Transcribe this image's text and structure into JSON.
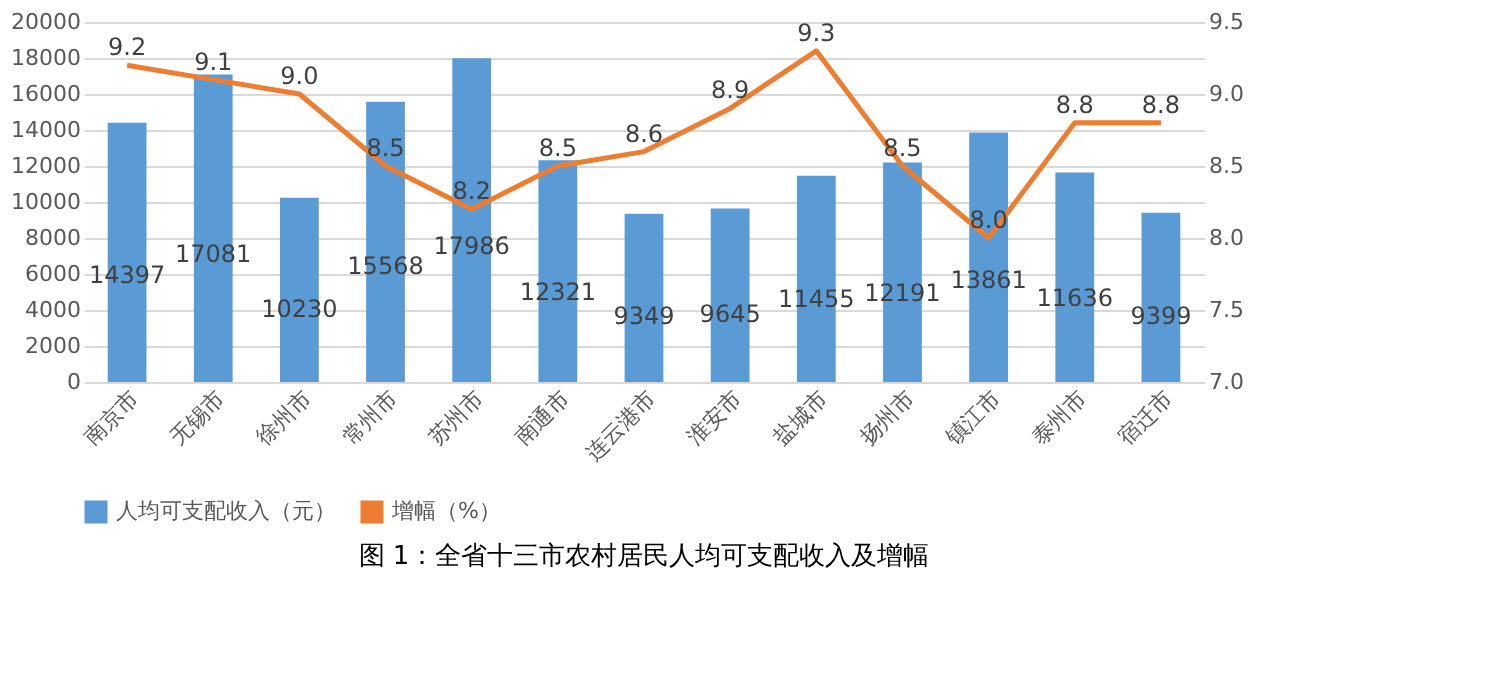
{
  "chart_data": {
    "type": "bar",
    "categories": [
      "南京市",
      "无锡市",
      "徐州市",
      "常州市",
      "苏州市",
      "南通市",
      "连云港市",
      "淮安市",
      "盐城市",
      "扬州市",
      "镇江市",
      "泰州市",
      "宿迁市"
    ],
    "series": [
      {
        "name": "人均可支配收入（元）",
        "color": "#5b9bd5",
        "values": [
          14397,
          17081,
          10230,
          15568,
          17986,
          12321,
          9349,
          9645,
          11455,
          12191,
          13861,
          11636,
          9399
        ],
        "value_labels": [
          "14397",
          "17081",
          "10230",
          "15568",
          "17986",
          "12321",
          "9349",
          "9645",
          "11455",
          "12191",
          "13861",
          "11636",
          "9399"
        ]
      },
      {
        "name": "增幅（%）",
        "type": "line",
        "axis": "y2",
        "color": "#ed7d31",
        "values": [
          9.2,
          9.1,
          9.0,
          8.5,
          8.2,
          8.5,
          8.6,
          8.9,
          9.3,
          8.5,
          8.0,
          8.8,
          8.8
        ],
        "value_labels": [
          "9.2",
          "9.1",
          "9.0",
          "8.5",
          "8.2",
          "8.5",
          "8.6",
          "8.9",
          "9.3",
          "8.5",
          "8.0",
          "8.8",
          "8.8"
        ]
      }
    ],
    "ylim": [
      0,
      20000
    ],
    "yticks": [
      0,
      2000,
      4000,
      6000,
      8000,
      10000,
      12000,
      14000,
      16000,
      18000,
      20000
    ],
    "y2lim": [
      7.0,
      9.5
    ],
    "y2ticks": [
      {
        "value": 7.0,
        "label": "7.0"
      },
      {
        "value": 7.5,
        "label": "7.5"
      },
      {
        "value": 8.0,
        "label": "8.0"
      },
      {
        "value": 8.5,
        "label": "8.5"
      },
      {
        "value": 9.0,
        "label": "9.0"
      },
      {
        "value": 9.5,
        "label": "9.5"
      }
    ],
    "grid": "y",
    "legend": "bottom",
    "marker": "none",
    "line_style": "solid",
    "annotations": [
      "图 1：全省十三市农村居民人均可支配收入及增幅"
    ]
  }
}
